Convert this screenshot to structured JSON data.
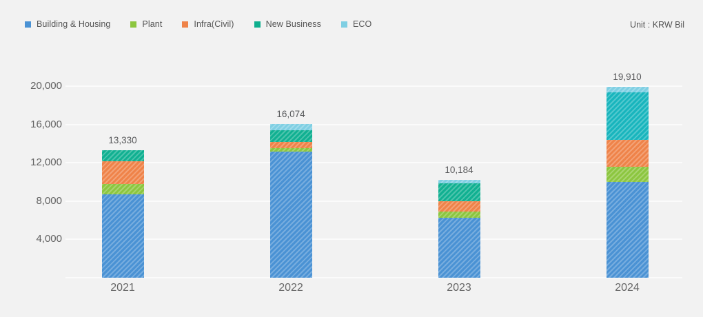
{
  "header": {
    "unit_label": "Unit : KRW Bil"
  },
  "legend": {
    "items": [
      {
        "label": "Building & Housing",
        "color": "#4A92D4"
      },
      {
        "label": "Plant",
        "color": "#8CC63F"
      },
      {
        "label": "Infra(Civil)",
        "color": "#EF8349"
      },
      {
        "label": "New Business",
        "color": "#0FAF8E"
      },
      {
        "label": "ECO",
        "color": "#7FCFE3"
      }
    ]
  },
  "chart_data": {
    "type": "bar",
    "stacked": true,
    "title": "",
    "unit": "KRW Bil",
    "categories": [
      "2021",
      "2022",
      "2023",
      "2024"
    ],
    "series": [
      {
        "name": "Building & Housing",
        "color": "#4A92D4",
        "values": [
          8740,
          13150,
          6280,
          10030
        ]
      },
      {
        "name": "Plant",
        "color": "#8CC63F",
        "values": [
          1010,
          360,
          600,
          1570
        ]
      },
      {
        "name": "Infra(Civil)",
        "color": "#EF8349",
        "values": [
          2410,
          644,
          1090,
          2790
        ]
      },
      {
        "name": "New Business",
        "color": "#10B091",
        "values": [
          1170,
          1270,
          1854,
          4960
        ],
        "color_overrides": {
          "3": "#18B5BD"
        }
      },
      {
        "name": "ECO",
        "color": "#7FCFE3",
        "values": [
          0,
          650,
          360,
          560
        ]
      }
    ],
    "totals": [
      13330,
      16074,
      10184,
      19910
    ],
    "total_labels": [
      "13,330",
      "16,074",
      "10,184",
      "19,910"
    ],
    "y_axis": {
      "min": 0,
      "max": 20000,
      "ticks": [
        4000,
        8000,
        12000,
        16000,
        20000
      ],
      "tick_labels": [
        "4,000",
        "8,000",
        "12,000",
        "16,000",
        "20,000"
      ],
      "gridlines": true
    },
    "legend_position": "top-left",
    "hatch_pattern": "diagonal-stripes"
  }
}
